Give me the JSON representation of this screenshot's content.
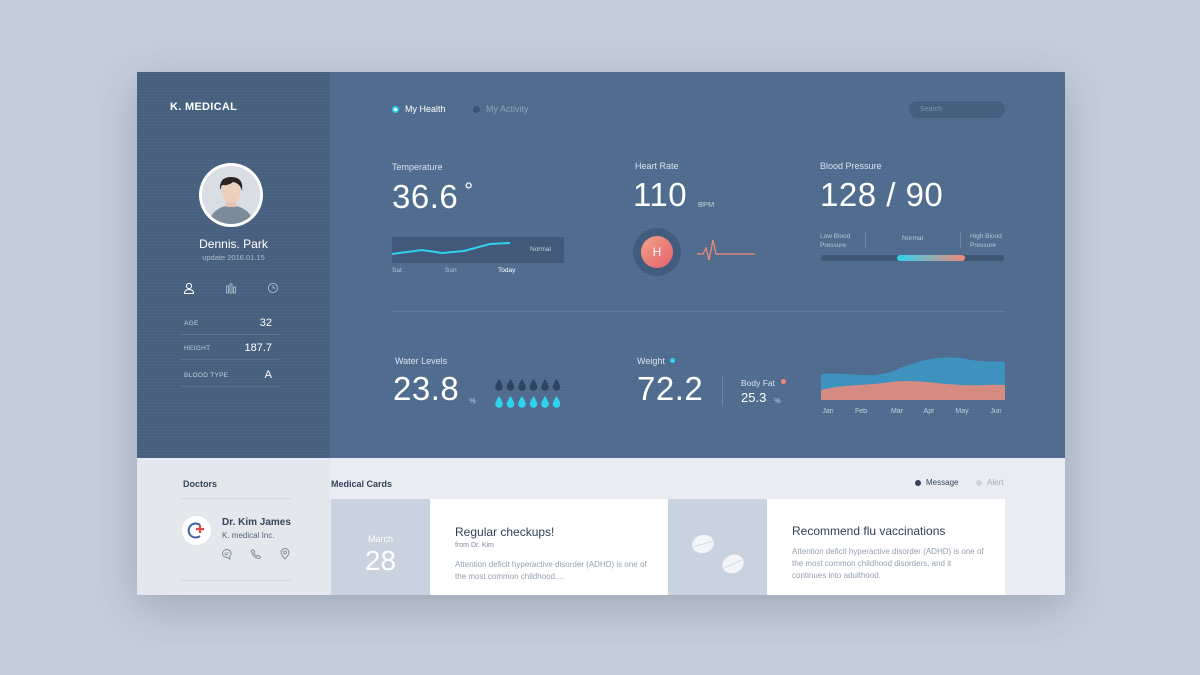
{
  "brand": "K. MEDICAL",
  "user": {
    "name": "Dennis. Park",
    "update": "update 2016.01.15"
  },
  "sidebar_icons": [
    "user-icon",
    "chart-icon",
    "clock-icon"
  ],
  "stats": [
    {
      "label": "AGE",
      "value": "32"
    },
    {
      "label": "HEIGHT",
      "value": "187.7"
    },
    {
      "label": "BLOOD TYPE",
      "value": "A"
    }
  ],
  "nav": {
    "tabs": [
      {
        "label": "My Health",
        "active": true
      },
      {
        "label": "My Activity",
        "active": false
      }
    ]
  },
  "search": {
    "placeholder": "Search"
  },
  "temperature": {
    "label": "Temperature",
    "value": "36.6",
    "unit": "°",
    "status": "Normal",
    "days": [
      "Sat",
      "Sun",
      "Today"
    ]
  },
  "heart_rate": {
    "label": "Heart Rate",
    "value": "110",
    "unit": "BPM",
    "badge": "H"
  },
  "blood_pressure": {
    "label": "Blood Pressure",
    "value": "128 / 90",
    "low": "Low Blood Pressure",
    "normal": "Normal",
    "high": "High Blood Pressure"
  },
  "water": {
    "label": "Water  Levels",
    "value": "23.8",
    "unit": "%",
    "drops_total": 12,
    "drops_filled": 6
  },
  "weight": {
    "label": "Weight",
    "value": "72.2",
    "body_fat_label": "Body Fat",
    "body_fat_value": "25.3",
    "body_fat_unit": "%"
  },
  "chart_data": {
    "type": "area",
    "categories": [
      "Jan",
      "Feb",
      "Mar",
      "Apr",
      "May",
      "Jun"
    ],
    "grid": false
  },
  "colors": {
    "accent_cyan": "#2fd3f0",
    "accent_coral": "#f08878",
    "panel": "#4f6b8e",
    "sidebar": "#48607f"
  },
  "doctors": {
    "title": "Doctors",
    "name": "Dr. Kim James",
    "org": "K. medical Inc.",
    "icons": [
      "message-icon",
      "phone-icon",
      "location-icon"
    ]
  },
  "medical_cards": {
    "title": "Medical Cards",
    "legend": [
      {
        "label": "Message",
        "active": true
      },
      {
        "label": "Alert",
        "active": false
      }
    ],
    "card1": {
      "month": "March",
      "day": "28",
      "title": "Regular checkups!",
      "from": "from Dr. Kim",
      "text": "Attention deficit hyperactive disorder (ADHD) is one of the most common childhood...."
    },
    "card2": {
      "title": "Recommend flu vaccinations",
      "text": "Attention deficit hyperactive disorder (ADHD) is one of the most common childhood disorders, and it continues into adulthood."
    }
  }
}
